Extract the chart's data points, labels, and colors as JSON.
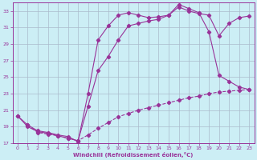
{
  "background_color": "#cceef5",
  "grid_color": "#aabbcc",
  "line_color": "#993399",
  "xlabel": "Windchill (Refroidissement éolien,°C)",
  "xlim": [
    -0.5,
    23.5
  ],
  "ylim": [
    17,
    34
  ],
  "yticks": [
    17,
    19,
    21,
    23,
    25,
    27,
    29,
    31,
    33
  ],
  "xticks": [
    0,
    1,
    2,
    3,
    4,
    5,
    6,
    7,
    8,
    9,
    10,
    11,
    12,
    13,
    14,
    15,
    16,
    17,
    18,
    19,
    20,
    21,
    22,
    23
  ],
  "line1_x": [
    0,
    1,
    2,
    3,
    4,
    5,
    6,
    7,
    8,
    9,
    10,
    11,
    12,
    13,
    14,
    15,
    16,
    17,
    18,
    19,
    20,
    21,
    22,
    23
  ],
  "line1_y": [
    20.3,
    19.2,
    18.5,
    18.3,
    18.0,
    17.8,
    17.2,
    23.0,
    29.5,
    31.2,
    32.5,
    32.8,
    32.5,
    32.2,
    32.3,
    32.5,
    33.5,
    33.0,
    32.7,
    32.5,
    30.0,
    31.5,
    32.2,
    32.4
  ],
  "line2_x": [
    0,
    1,
    2,
    3,
    4,
    5,
    6,
    7,
    8,
    9,
    10,
    11,
    12,
    13,
    14,
    15,
    16,
    17,
    18,
    19,
    20,
    21,
    22,
    23
  ],
  "line2_y": [
    20.3,
    19.0,
    18.4,
    18.2,
    17.9,
    17.6,
    17.3,
    21.5,
    25.8,
    27.5,
    29.5,
    31.2,
    31.5,
    31.8,
    32.0,
    32.5,
    33.8,
    33.3,
    32.8,
    30.5,
    25.2,
    24.5,
    23.8,
    23.5
  ],
  "line3_x": [
    1,
    2,
    3,
    4,
    5,
    6,
    7,
    8,
    9,
    10,
    11,
    12,
    13,
    14,
    15,
    16,
    17,
    18,
    19,
    20,
    21,
    22,
    23
  ],
  "line3_y": [
    19.2,
    18.3,
    18.1,
    17.9,
    17.6,
    17.3,
    18.0,
    18.8,
    19.5,
    20.2,
    20.6,
    21.0,
    21.3,
    21.6,
    21.9,
    22.2,
    22.5,
    22.7,
    23.0,
    23.2,
    23.3,
    23.4,
    23.5
  ]
}
